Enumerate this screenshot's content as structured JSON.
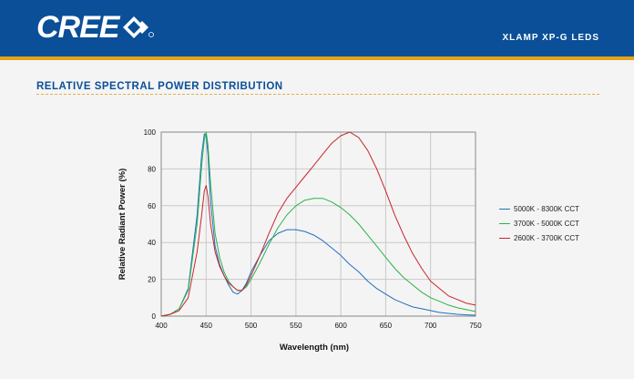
{
  "header": {
    "logo_text": "CREE",
    "product_title": "XLAMP XP-G LEDS",
    "bg_color": "#0a4f98",
    "stripe_color": "#e8a21a"
  },
  "section_title": "RELATIVE SPECTRAL POWER DISTRIBUTION",
  "chart_data": {
    "type": "line",
    "title": "",
    "xlabel": "Wavelength (nm)",
    "ylabel": "Relative Radiant Power (%)",
    "xlim": [
      400,
      750
    ],
    "ylim": [
      0,
      100
    ],
    "xticks": [
      "400",
      "450",
      "500",
      "550",
      "600",
      "650",
      "700",
      "750"
    ],
    "yticks": [
      "0",
      "20",
      "40",
      "60",
      "80",
      "100"
    ],
    "grid": true,
    "legend_position": "right",
    "x": [
      400,
      410,
      420,
      430,
      440,
      445,
      448,
      450,
      452,
      455,
      460,
      465,
      470,
      475,
      480,
      485,
      490,
      495,
      500,
      510,
      520,
      530,
      540,
      550,
      560,
      570,
      580,
      590,
      600,
      610,
      620,
      630,
      640,
      650,
      660,
      670,
      680,
      690,
      700,
      710,
      720,
      730,
      740,
      750
    ],
    "series": [
      {
        "name": "5000K - 8300K CCT",
        "color": "#1f6fc0",
        "values": [
          0,
          1,
          4,
          15,
          55,
          88,
          99,
          98,
          88,
          62,
          38,
          28,
          22,
          17,
          13,
          12,
          14,
          18,
          24,
          33,
          41,
          45,
          47,
          47,
          46,
          44,
          41,
          37,
          33,
          28,
          24,
          19,
          15,
          12,
          9,
          7,
          5,
          4,
          3,
          2,
          1.5,
          1,
          0.7,
          0.5
        ]
      },
      {
        "name": "3700K - 5000K CCT",
        "color": "#2bb34a",
        "values": [
          0,
          1,
          4,
          14,
          50,
          82,
          96,
          100,
          93,
          72,
          45,
          32,
          24,
          19,
          16,
          14,
          14,
          16,
          20,
          29,
          39,
          48,
          55,
          60,
          63,
          64,
          64,
          62,
          59,
          55,
          50,
          44,
          38,
          32,
          26,
          21,
          17,
          13,
          10,
          8,
          6,
          4.5,
          3.5,
          2.5
        ]
      },
      {
        "name": "2600K - 3700K CCT",
        "color": "#c8242b",
        "values": [
          0,
          1,
          3,
          10,
          35,
          55,
          68,
          71,
          65,
          50,
          35,
          27,
          22,
          18,
          16,
          14,
          14,
          17,
          22,
          33,
          45,
          56,
          64,
          70,
          76,
          82,
          88,
          94,
          98,
          100,
          97,
          90,
          80,
          68,
          55,
          44,
          34,
          26,
          19,
          15,
          11,
          9,
          7,
          6
        ]
      }
    ]
  }
}
